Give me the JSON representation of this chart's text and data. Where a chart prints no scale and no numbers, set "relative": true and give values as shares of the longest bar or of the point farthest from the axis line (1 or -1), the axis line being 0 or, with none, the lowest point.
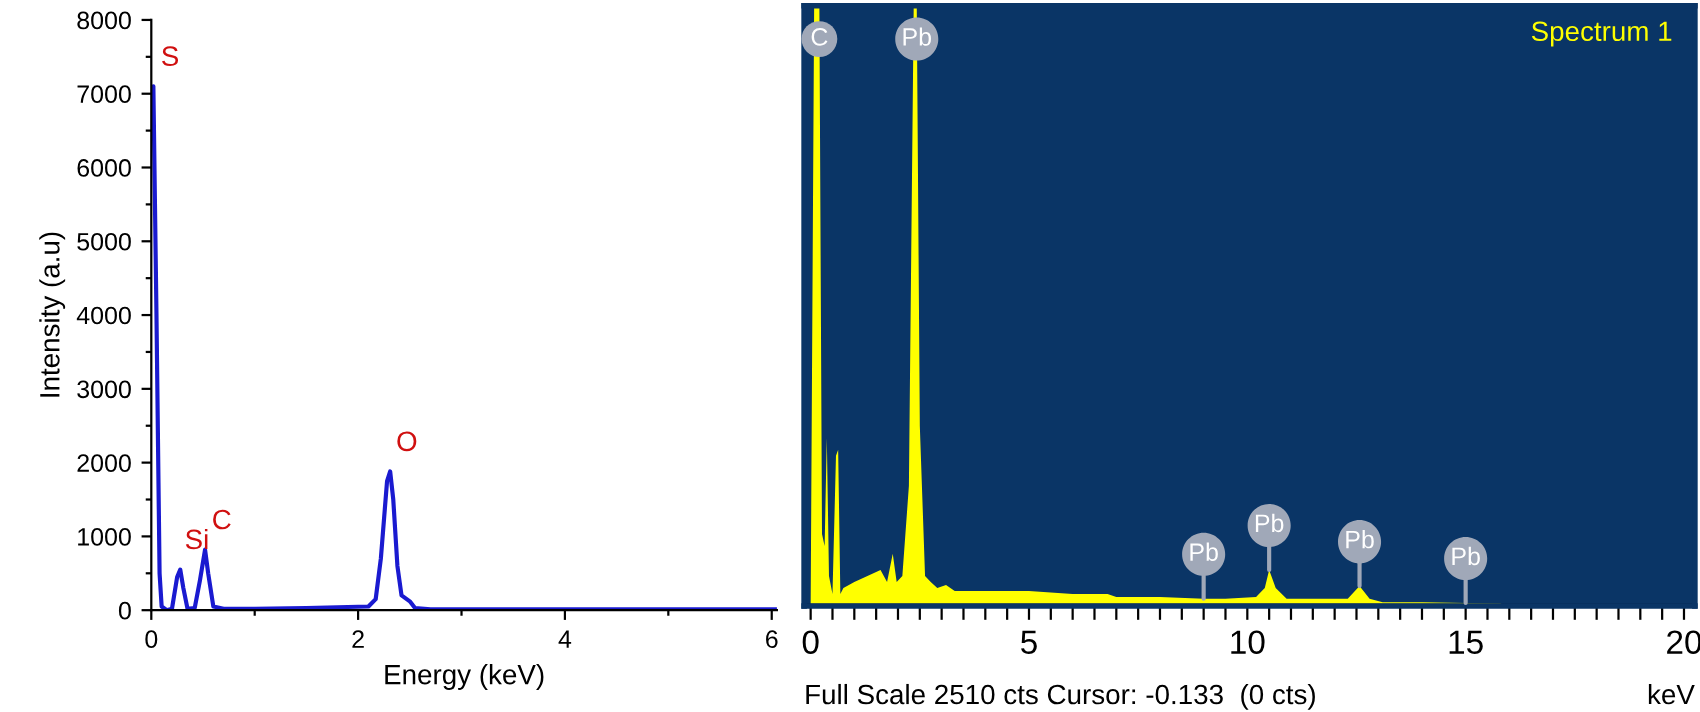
{
  "chart_data": [
    {
      "type": "line",
      "xlabel": "Energy (keV)",
      "ylabel": "Intensity (a.u)",
      "x": [
        0.0,
        0.02,
        0.05,
        0.08,
        0.1,
        0.15,
        0.2,
        0.25,
        0.28,
        0.31,
        0.35,
        0.42,
        0.47,
        0.52,
        0.55,
        0.6,
        0.7,
        1.0,
        1.5,
        1.8,
        2.1,
        2.17,
        2.22,
        2.28,
        2.31,
        2.34,
        2.38,
        2.42,
        2.5,
        2.55,
        2.7,
        3,
        4,
        5,
        6,
        6.05
      ],
      "series": [
        {
          "color": "#1a1ad0",
          "values": [
            6500,
            7100,
            4000,
            500,
            50,
            0,
            20,
            450,
            550,
            300,
            20,
            30,
            400,
            820,
            500,
            50,
            20,
            20,
            30,
            40,
            50,
            150,
            700,
            1750,
            1880,
            1500,
            600,
            200,
            120,
            30,
            10,
            10,
            10,
            10,
            10,
            10
          ]
        }
      ],
      "xlim": [
        0,
        6.05
      ],
      "ylim": [
        0,
        8000
      ],
      "xticks": [
        0,
        {
          "value": 1,
          "label": null
        },
        2,
        {
          "value": 3,
          "label": null
        },
        4,
        {
          "value": 5,
          "label": null
        },
        6
      ],
      "yticks": [
        0,
        {
          "value": 500,
          "label": null
        },
        1000,
        {
          "value": 1500,
          "label": null
        },
        2000,
        {
          "value": 2500,
          "label": null
        },
        3000,
        {
          "value": 3500,
          "label": null
        },
        4000,
        {
          "value": 4500,
          "label": null
        },
        5000,
        {
          "value": 5500,
          "label": null
        },
        6000,
        {
          "value": 6500,
          "label": null
        },
        7000,
        {
          "value": 7500,
          "label": null
        },
        8000
      ],
      "annotations": [
        {
          "text": "S",
          "x": 0.02,
          "y": 7100
        },
        {
          "text": "Si",
          "x": 0.28,
          "y": 550
        },
        {
          "text": "C",
          "x": 0.52,
          "y": 820
        },
        {
          "text": "O",
          "x": 2.31,
          "y": 1880
        }
      ]
    },
    {
      "type": "area",
      "relative": true,
      "xlabel": "keV",
      "x": [
        0,
        0.08,
        0.12,
        0.2,
        0.26,
        0.32,
        0.37,
        0.42,
        0.5,
        0.58,
        0.63,
        0.68,
        0.75,
        1.0,
        1.3,
        1.6,
        1.75,
        1.88,
        1.97,
        2.1,
        2.25,
        2.36,
        2.43,
        2.5,
        2.62,
        2.75,
        2.9,
        3.1,
        3.3,
        4,
        5,
        6,
        6.8,
        7,
        8,
        9,
        9.5,
        10.2,
        10.4,
        10.5,
        10.65,
        10.9,
        11.5,
        12.3,
        12.57,
        12.8,
        13.1,
        14,
        15,
        15.8,
        15.9,
        20
      ],
      "series": [
        {
          "name": "Spectrum 1",
          "color": "#ffff00",
          "values": [
            0,
            1,
            1,
            1,
            0.12,
            0.1,
            0.28,
            0.05,
            0.02,
            0.25,
            0.26,
            0.02,
            0.03,
            0.04,
            0.05,
            0.06,
            0.04,
            0.087,
            0.04,
            0.05,
            0.2,
            1,
            1,
            0.3,
            0.05,
            0.04,
            0.03,
            0.035,
            0.025,
            0.025,
            0.025,
            0.02,
            0.02,
            0.015,
            0.015,
            0.012,
            0.012,
            0.015,
            0.03,
            0.06,
            0.03,
            0.012,
            0.012,
            0.012,
            0.033,
            0.012,
            0.006,
            0.006,
            0.005,
            0.004,
            0,
            0
          ]
        }
      ],
      "xlim": [
        -0.15,
        20.25
      ],
      "xticks": [
        0,
        {
          "value": 0.5,
          "label": null
        },
        {
          "value": 1,
          "label": null
        },
        {
          "value": 1.5,
          "label": null
        },
        {
          "value": 2,
          "label": null
        },
        {
          "value": 2.5,
          "label": null
        },
        {
          "value": 3,
          "label": null
        },
        {
          "value": 3.5,
          "label": null
        },
        {
          "value": 4,
          "label": null
        },
        {
          "value": 4.5,
          "label": null
        },
        5,
        {
          "value": 5.5,
          "label": null
        },
        {
          "value": 6,
          "label": null
        },
        {
          "value": 6.5,
          "label": null
        },
        {
          "value": 7,
          "label": null
        },
        {
          "value": 7.5,
          "label": null
        },
        {
          "value": 8,
          "label": null
        },
        {
          "value": 8.5,
          "label": null
        },
        {
          "value": 9,
          "label": null
        },
        {
          "value": 9.5,
          "label": null
        },
        10,
        {
          "value": 10.5,
          "label": null
        },
        {
          "value": 11,
          "label": null
        },
        {
          "value": 11.5,
          "label": null
        },
        {
          "value": 12,
          "label": null
        },
        {
          "value": 12.5,
          "label": null
        },
        {
          "value": 13,
          "label": null
        },
        {
          "value": 13.5,
          "label": null
        },
        {
          "value": 14,
          "label": null
        },
        {
          "value": 14.5,
          "label": null
        },
        15,
        {
          "value": 15.5,
          "label": null
        },
        {
          "value": 16,
          "label": null
        },
        {
          "value": 16.5,
          "label": null
        },
        {
          "value": 17,
          "label": null
        },
        {
          "value": 17.5,
          "label": null
        },
        {
          "value": 18,
          "label": null
        },
        {
          "value": 18.5,
          "label": null
        },
        {
          "value": 19,
          "label": null
        },
        {
          "value": 19.5,
          "label": null
        },
        20
      ],
      "annotations": [
        {
          "text": "C",
          "x": 0.2,
          "y": 1
        },
        {
          "text": "Pb",
          "x": 2.43,
          "y": 1
        },
        {
          "text": "Pb",
          "x": 9,
          "y": 0.012
        },
        {
          "text": "Pb",
          "x": 10.5,
          "y": 0.06
        },
        {
          "text": "Pb",
          "x": 12.57,
          "y": 0.033
        },
        {
          "text": "Pb",
          "x": 15,
          "y": 0.005
        },
        "Full Scale 2510 cts Cursor: -0.133  (0 cts)"
      ]
    }
  ]
}
